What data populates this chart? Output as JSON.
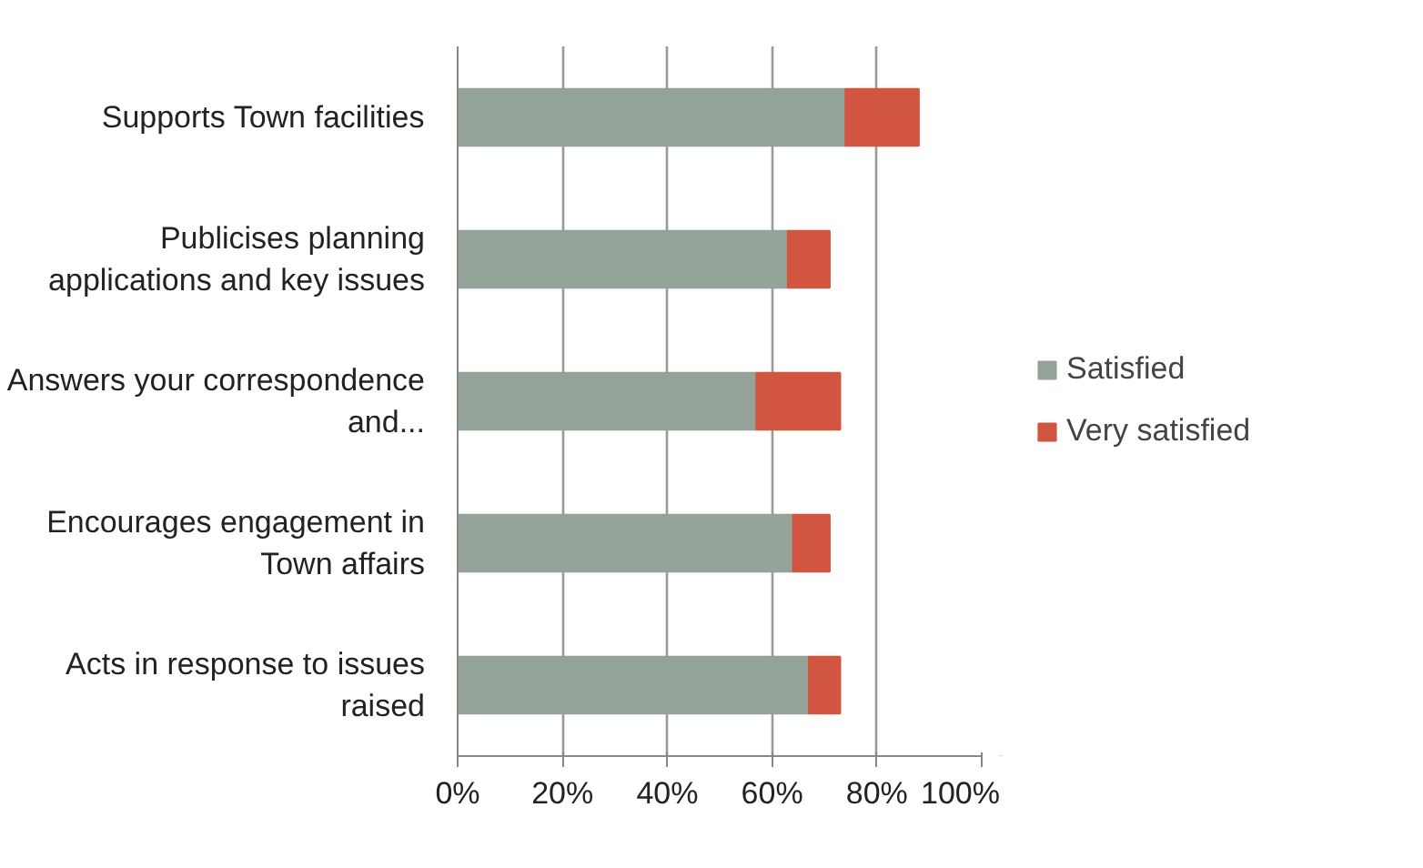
{
  "chart_data": {
    "type": "bar",
    "orientation": "horizontal",
    "stacked": true,
    "categories": [
      "Supports Town facilities",
      "Publicises planning applications and key issues",
      "Answers your correspondence and...",
      "Encourages engagement in Town affairs",
      "Acts in response to issues raised"
    ],
    "series": [
      {
        "name": "Satisfied",
        "color": "#94a398",
        "values": [
          74,
          63,
          57,
          64,
          67
        ]
      },
      {
        "name": "Very satisfied",
        "color": "#d15540",
        "values": [
          14,
          8,
          16,
          7,
          6
        ]
      }
    ],
    "xlim": [
      0,
      100
    ],
    "xticks": [
      {
        "value": 0,
        "label": "0%"
      },
      {
        "value": 20,
        "label": "20%"
      },
      {
        "value": 40,
        "label": "40%"
      },
      {
        "value": 60,
        "label": "60%"
      },
      {
        "value": 80,
        "label": "80%"
      },
      {
        "value": 100,
        "label": "100%"
      }
    ],
    "grid": "x",
    "legend": "right"
  }
}
